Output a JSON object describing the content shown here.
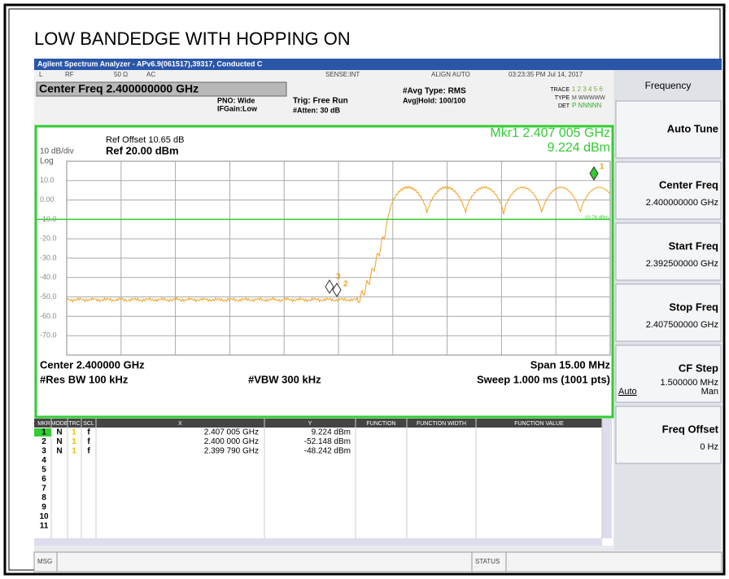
{
  "title": "LOW BANDEDGE WITH HOPPING ON",
  "window_title": "Agilent Spectrum Analyzer - APv6.9(061517),39317, Conducted C",
  "status_bar": {
    "items": [
      "L",
      "RF",
      "50 Ω",
      "AC",
      "SENSE:INT",
      "ALIGN AUTO",
      "03:23:35 PM Jul 14, 2017"
    ]
  },
  "settings": {
    "center_freq": "Center Freq 2.400000000 GHz",
    "pno": "PNO: Wide",
    "ifgain": "IFGain:Low",
    "trig": "Trig: Free Run",
    "atten": "#Atten: 30 dB",
    "avg_type": "#Avg Type: RMS",
    "avg_hold": "Avg|Hold: 100/100",
    "trace_label": "TRACE",
    "trace_nums": "1 2 3 4 5 6",
    "type_label": "TYPE",
    "type_value": "M WWWWW",
    "det_label": "DET",
    "det_value": "P NNNNN"
  },
  "graph": {
    "ref_offset": "Ref Offset 10.65 dB",
    "ref": "Ref 20.00 dBm",
    "scale": "10 dB/div",
    "log": "Log",
    "marker_freq": "Mkr1 2.407 005 GHz",
    "marker_level": "9.224 dBm",
    "y_labels": [
      "10.0",
      "0.00",
      "-10.0",
      "-20.0",
      "-30.0",
      "-40.0",
      "-50.0",
      "-60.0",
      "-70.0"
    ],
    "limit_label": "-10.76 dBm",
    "markers": [
      "1",
      "2",
      "3"
    ],
    "center": "Center 2.400000 GHz",
    "span": "Span 15.00 MHz",
    "rbw": "#Res BW 100 kHz",
    "vbw": "#VBW 300 kHz",
    "sweep": "Sweep 1.000 ms (1001 pts)"
  },
  "marker_table": {
    "columns": [
      "MKR",
      "MODE",
      "TRC",
      "SCL",
      "X",
      "Y",
      "FUNCTION",
      "FUNCTION WIDTH",
      "FUNCTION VALUE"
    ],
    "rows": [
      [
        "1",
        "N",
        "1",
        "f",
        "2.407 005 GHz",
        "9.224 dBm"
      ],
      [
        "2",
        "N",
        "1",
        "f",
        "2.400 000 GHz",
        "-52.148 dBm"
      ],
      [
        "3",
        "N",
        "1",
        "f",
        "2.399 790 GHz",
        "-48.242 dBm"
      ],
      [
        "4"
      ],
      [
        "5"
      ],
      [
        "6"
      ],
      [
        "7"
      ],
      [
        "8"
      ],
      [
        "9"
      ],
      [
        "10"
      ],
      [
        "11"
      ]
    ]
  },
  "footer": {
    "msg": "MSG",
    "status": "STATUS"
  },
  "menu": {
    "title": "Frequency",
    "buttons": [
      {
        "label": "Auto Tune"
      },
      {
        "label": "Center Freq",
        "value": "2.400000000 GHz"
      },
      {
        "label": "Start Freq",
        "value": "2.392500000 GHz"
      },
      {
        "label": "Stop Freq",
        "value": "2.407500000 GHz"
      },
      {
        "label": "CF Step",
        "value": "1.500000 MHz",
        "options": [
          "Auto",
          "Man"
        ]
      },
      {
        "label": "Freq Offset",
        "value": "0 Hz"
      }
    ]
  }
}
